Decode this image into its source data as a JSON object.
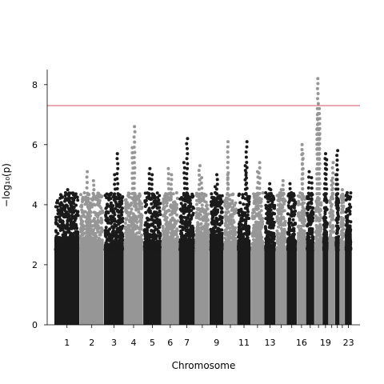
{
  "chart_data": {
    "type": "scatter",
    "subtype": "manhattan",
    "xlabel": "Chromosome",
    "ylabel": "−log₁₀(p)",
    "ylim": [
      0,
      8.5
    ],
    "yticks": [
      0,
      2,
      4,
      6,
      8
    ],
    "threshold": 7.3,
    "threshold_color": "#d2545e",
    "colors": [
      "#1a1a1a",
      "#969696"
    ],
    "grid": false,
    "chromosomes": [
      {
        "chr": 1,
        "label": "1",
        "size": 248,
        "top_points": [
          4.4,
          4.5
        ]
      },
      {
        "chr": 2,
        "label": "2",
        "size": 242,
        "top_points": [
          5.1,
          4.8
        ]
      },
      {
        "chr": 3,
        "label": "3",
        "size": 198,
        "top_points": [
          5.7,
          5.0
        ]
      },
      {
        "chr": 4,
        "label": "4",
        "size": 190,
        "top_points": [
          6.6,
          5.9
        ]
      },
      {
        "chr": 5,
        "label": "5",
        "size": 181,
        "top_points": [
          5.2,
          5.0
        ]
      },
      {
        "chr": 6,
        "label": "6",
        "size": 171,
        "top_points": [
          5.2,
          5.0
        ]
      },
      {
        "chr": 7,
        "label": "7",
        "size": 159,
        "top_points": [
          6.2,
          5.4
        ]
      },
      {
        "chr": 8,
        "label": "",
        "size": 145,
        "top_points": [
          5.3,
          4.9
        ]
      },
      {
        "chr": 9,
        "label": "9",
        "size": 138,
        "top_points": [
          5.0,
          4.6
        ]
      },
      {
        "chr": 10,
        "label": "",
        "size": 134,
        "top_points": [
          6.1,
          5.0
        ]
      },
      {
        "chr": 11,
        "label": "11",
        "size": 135,
        "top_points": [
          6.1,
          5.3
        ]
      },
      {
        "chr": 12,
        "label": "",
        "size": 133,
        "top_points": [
          5.4,
          5.1
        ]
      },
      {
        "chr": 13,
        "label": "13",
        "size": 114,
        "top_points": [
          4.7,
          4.5
        ]
      },
      {
        "chr": 14,
        "label": "",
        "size": 107,
        "top_points": [
          4.8,
          4.5
        ]
      },
      {
        "chr": 15,
        "label": "",
        "size": 102,
        "top_points": [
          4.7,
          4.4
        ]
      },
      {
        "chr": 16,
        "label": "16",
        "size": 90,
        "top_points": [
          6.0,
          5.7
        ]
      },
      {
        "chr": 17,
        "label": "",
        "size": 83,
        "top_points": [
          5.1,
          4.9
        ]
      },
      {
        "chr": 18,
        "label": "",
        "size": 80,
        "top_points": [
          8.2,
          7.2,
          7.0,
          6.5
        ]
      },
      {
        "chr": 19,
        "label": "19",
        "size": 59,
        "top_points": [
          5.7,
          5.5
        ]
      },
      {
        "chr": 20,
        "label": "",
        "size": 64,
        "top_points": [
          5.4,
          4.8
        ]
      },
      {
        "chr": 21,
        "label": "",
        "size": 47,
        "top_points": [
          5.8,
          5.0
        ]
      },
      {
        "chr": 22,
        "label": "",
        "size": 51,
        "top_points": [
          4.5,
          4.3
        ]
      },
      {
        "chr": 23,
        "label": "23",
        "size": 70,
        "top_points": [
          4.4,
          4.2
        ]
      }
    ]
  }
}
